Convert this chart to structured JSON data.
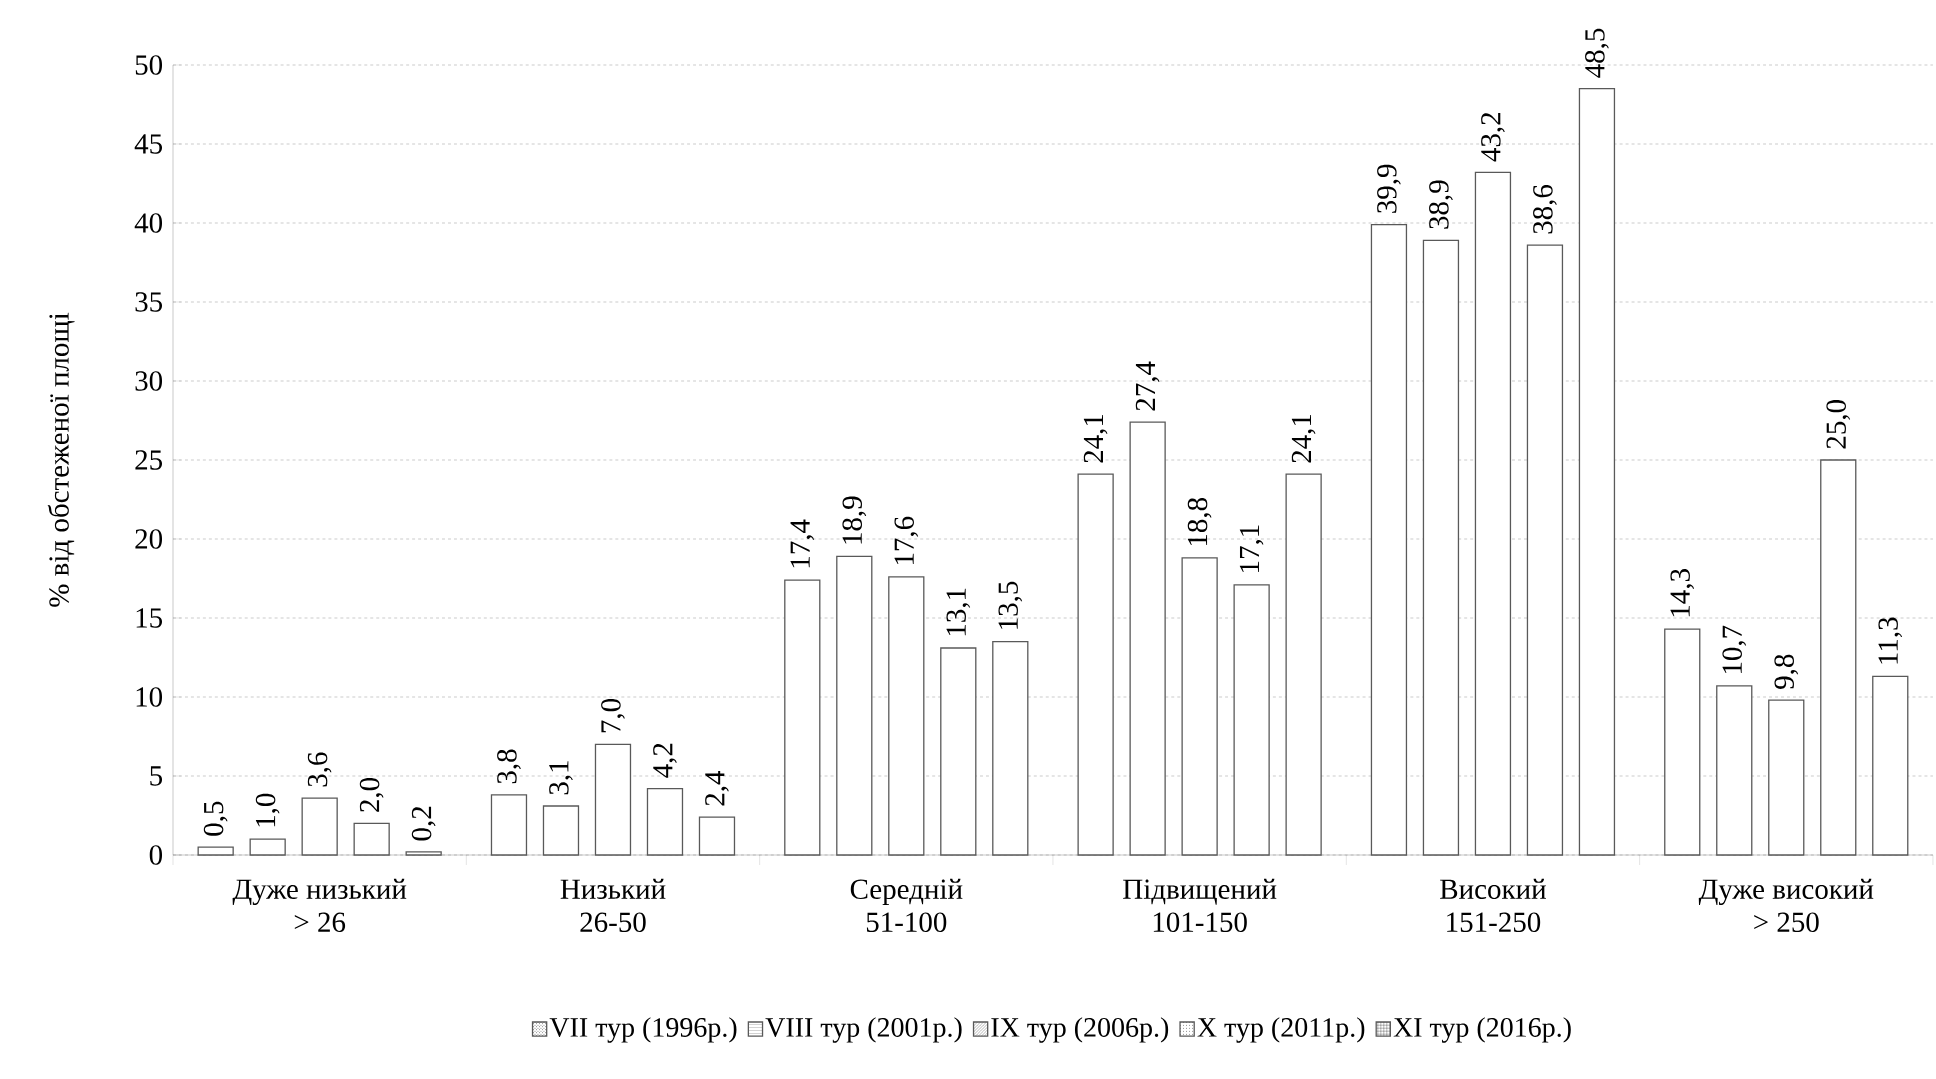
{
  "chart_data": {
    "type": "bar",
    "ylabel": "%  від обстеженої площі",
    "categories": [
      "Дуже низький\n> 26",
      "Низький\n26-50",
      "Середній\n51-100",
      "Підвищений\n101-150",
      "Високий\n151-250",
      "Дуже високий\n> 250"
    ],
    "series": [
      {
        "name": "VII тур (1996р.)",
        "color": "#ffffff",
        "values": [
          0.5,
          3.8,
          17.4,
          24.1,
          39.9,
          14.3
        ],
        "value_labels": [
          "0,5",
          "3,8",
          "17,4",
          "24,1",
          "39,9",
          "14,3"
        ]
      },
      {
        "name": "VIII тур (2001р.)",
        "color": "#ffffff",
        "values": [
          1.0,
          3.1,
          18.9,
          27.4,
          38.9,
          10.7
        ],
        "value_labels": [
          "1,0",
          "3,1",
          "18,9",
          "27,4",
          "38,9",
          "10,7"
        ]
      },
      {
        "name": "IX тур (2006р.)",
        "color": "#ffffff",
        "values": [
          3.6,
          7.0,
          17.6,
          18.8,
          43.2,
          9.8
        ],
        "value_labels": [
          "3,6",
          "7,0",
          "17,6",
          "18,8",
          "43,2",
          "9,8"
        ]
      },
      {
        "name": "X тур (2011р.)",
        "color": "#ffffff",
        "values": [
          2.0,
          4.2,
          13.1,
          17.1,
          38.6,
          25.0
        ],
        "value_labels": [
          "2,0",
          "4,2",
          "13,1",
          "17,1",
          "38,6",
          "25,0"
        ]
      },
      {
        "name": "XI тур (2016р.)",
        "color": "#ffffff",
        "values": [
          0.2,
          2.4,
          13.5,
          24.1,
          48.5,
          11.3
        ],
        "value_labels": [
          "0,2",
          "2,4",
          "13,5",
          "24,1",
          "48,5",
          "11,3"
        ]
      }
    ],
    "ylim": [
      0,
      50
    ],
    "yticks": [
      0,
      5,
      10,
      15,
      20,
      25,
      30,
      35,
      40,
      45,
      50
    ],
    "grid": "y",
    "legend": "bottom"
  }
}
